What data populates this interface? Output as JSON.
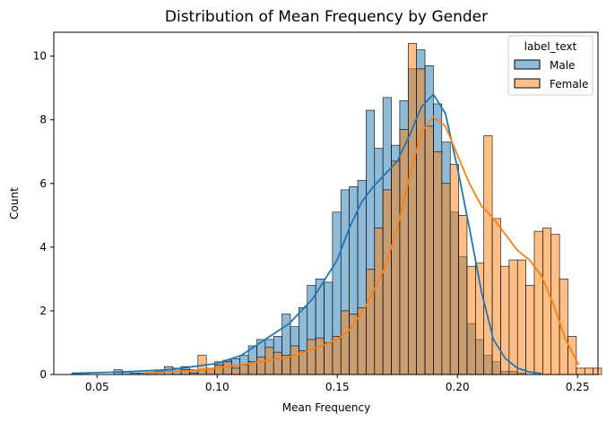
{
  "chart_data": {
    "type": "histogram",
    "title": "Distribution of Mean Frequency by Gender",
    "xlabel": "Mean Frequency",
    "ylabel": "Count",
    "xlim": [
      0.032,
      0.2585
    ],
    "ylim": [
      0,
      10.75
    ],
    "xticks": [
      0.05,
      0.1,
      0.15,
      0.2,
      0.25
    ],
    "xtick_labels": [
      "0.05",
      "0.10",
      "0.15",
      "0.20",
      "0.25"
    ],
    "yticks": [
      0,
      2,
      4,
      6,
      8,
      10
    ],
    "ytick_labels": [
      "0",
      "2",
      "4",
      "6",
      "8",
      "10"
    ],
    "legend": {
      "title": "label_text",
      "placement": "top-right",
      "entries": [
        "Male",
        "Female"
      ]
    },
    "bins": {
      "start": 0.0395,
      "width": 0.0035,
      "count": 60
    },
    "series": [
      {
        "name": "Male",
        "color": "#1f77b4",
        "values": [
          0.05,
          0.05,
          0,
          0,
          0,
          0.15,
          0.1,
          0.05,
          0.05,
          0.05,
          0.1,
          0.25,
          0.2,
          0.25,
          0.15,
          0.15,
          0.2,
          0.4,
          0.45,
          0.5,
          0.6,
          0.9,
          1.1,
          1.1,
          1.2,
          1.9,
          1.5,
          2.1,
          2.8,
          3.0,
          2.9,
          5.1,
          5.8,
          5.9,
          6.1,
          8.3,
          7.1,
          8.7,
          7.2,
          8.6,
          9.6,
          10.2,
          9.7,
          8.5,
          7.3,
          5.1,
          3.7,
          1.6,
          1.1,
          0.6,
          0.4,
          0.1,
          0.1,
          0.05,
          0,
          0,
          0,
          0,
          0,
          0
        ],
        "kde": [
          [
            0.0395,
            0.04
          ],
          [
            0.06,
            0.08
          ],
          [
            0.08,
            0.15
          ],
          [
            0.1,
            0.35
          ],
          [
            0.11,
            0.6
          ],
          [
            0.12,
            1.1
          ],
          [
            0.13,
            1.6
          ],
          [
            0.14,
            2.4
          ],
          [
            0.15,
            3.6
          ],
          [
            0.155,
            4.6
          ],
          [
            0.16,
            5.4
          ],
          [
            0.165,
            5.9
          ],
          [
            0.17,
            6.3
          ],
          [
            0.175,
            6.7
          ],
          [
            0.18,
            7.5
          ],
          [
            0.185,
            8.4
          ],
          [
            0.19,
            8.8
          ],
          [
            0.195,
            8.2
          ],
          [
            0.2,
            6.5
          ],
          [
            0.205,
            4.6
          ],
          [
            0.21,
            2.6
          ],
          [
            0.215,
            1.1
          ],
          [
            0.22,
            0.5
          ],
          [
            0.225,
            0.2
          ],
          [
            0.23,
            0.08
          ],
          [
            0.235,
            0.03
          ]
        ]
      },
      {
        "name": "Female",
        "color": "#ff7f0e",
        "values": [
          0,
          0,
          0,
          0,
          0,
          0,
          0,
          0,
          0,
          0,
          0,
          0,
          0,
          0.15,
          0.05,
          0.6,
          0.2,
          0.3,
          0.4,
          0.2,
          0.3,
          0.4,
          0.55,
          0.85,
          0.7,
          0.6,
          0.9,
          0.75,
          1.1,
          1.15,
          1.0,
          1.2,
          2.0,
          1.9,
          2.1,
          3.3,
          4.6,
          5.8,
          6.7,
          7.7,
          10.4,
          9.6,
          7.8,
          7.0,
          6.0,
          6.6,
          5.0,
          3.4,
          3.5,
          7.5,
          4.9,
          3.4,
          3.6,
          3.6,
          2.8,
          4.5,
          4.6,
          4.4,
          3.0,
          1.2
        ]
      }
    ],
    "female_tail": {
      "extra_bins": [
        0.2,
        0.2,
        0.2
      ],
      "kde": [
        [
          0.07,
          0.05
        ],
        [
          0.09,
          0.12
        ],
        [
          0.11,
          0.3
        ],
        [
          0.13,
          0.55
        ],
        [
          0.14,
          0.8
        ],
        [
          0.15,
          1.1
        ],
        [
          0.155,
          1.4
        ],
        [
          0.16,
          1.9
        ],
        [
          0.165,
          2.6
        ],
        [
          0.17,
          3.4
        ],
        [
          0.175,
          4.6
        ],
        [
          0.18,
          6.2
        ],
        [
          0.185,
          7.6
        ],
        [
          0.19,
          8.1
        ],
        [
          0.195,
          7.8
        ],
        [
          0.2,
          6.9
        ],
        [
          0.205,
          6.0
        ],
        [
          0.21,
          5.3
        ],
        [
          0.215,
          4.9
        ],
        [
          0.22,
          4.4
        ],
        [
          0.225,
          3.9
        ],
        [
          0.23,
          3.6
        ],
        [
          0.235,
          3.1
        ],
        [
          0.24,
          2.2
        ],
        [
          0.245,
          1.1
        ],
        [
          0.2505,
          0.3
        ]
      ]
    }
  }
}
